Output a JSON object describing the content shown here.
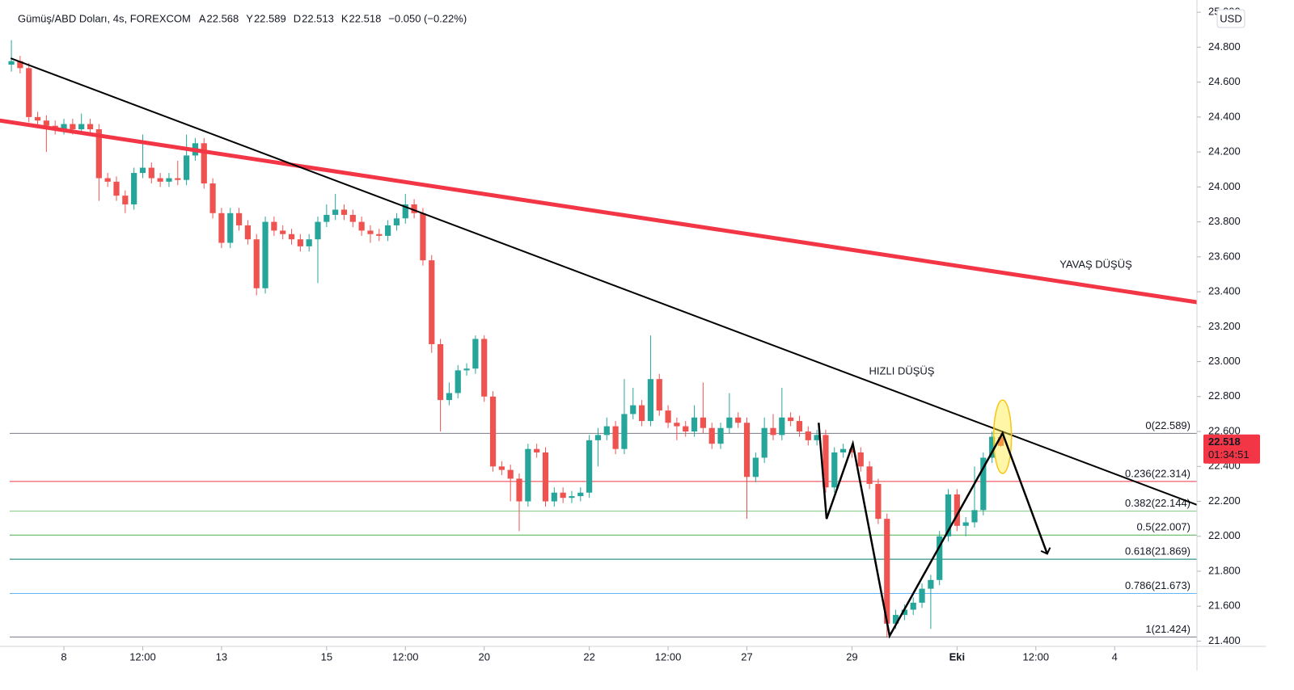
{
  "chart_data": {
    "type": "candlestick",
    "header": {
      "symbol": "Gümüş/ABD Doları, 4s, FOREXCOM",
      "fields": [
        {
          "key": "A",
          "value": "22.568"
        },
        {
          "key": "Y",
          "value": "22.589"
        },
        {
          "key": "D",
          "value": "22.513"
        },
        {
          "key": "K",
          "value": "22.518"
        }
      ],
      "change": "−0.050 (−0.22%)"
    },
    "currency": "USD",
    "up_color": "#26a69a",
    "down_color": "#ef5350",
    "series": [
      {
        "open": [
          24.7,
          24.72,
          24.68,
          24.4,
          24.38,
          24.35,
          24.33,
          24.36,
          24.33,
          24.36,
          24.33,
          24.05,
          24.03,
          23.95,
          23.9,
          24.08,
          24.11,
          24.05,
          24.03,
          24.05,
          24.04,
          24.18,
          24.25,
          24.02,
          23.85,
          23.68,
          23.85,
          23.78,
          23.7,
          23.42,
          23.8,
          23.75,
          23.73,
          23.7,
          23.66,
          23.7,
          23.8,
          23.84,
          23.87,
          23.84,
          23.8,
          23.75,
          23.73,
          23.72,
          23.78,
          23.82,
          23.9,
          23.85,
          23.58,
          23.1,
          22.78,
          22.82,
          22.95,
          22.96,
          23.13,
          22.8,
          22.4,
          22.38,
          22.33,
          22.2,
          22.5,
          22.48,
          22.2,
          22.25,
          22.22,
          22.23,
          22.25,
          22.55,
          22.58,
          22.63,
          22.5,
          22.7,
          22.75,
          22.66,
          22.9,
          22.72,
          22.65,
          22.63,
          22.6,
          22.68,
          22.62,
          22.53,
          22.62,
          22.68,
          22.65,
          22.34,
          22.45,
          22.62,
          22.58,
          22.68,
          22.66,
          22.6,
          22.55,
          22.58,
          22.28,
          22.48,
          22.5,
          22.48,
          22.4,
          22.3,
          22.1,
          21.5,
          21.55,
          21.58,
          21.62,
          21.7,
          21.75,
          22.0,
          22.24,
          22.06,
          22.08,
          22.15,
          22.45,
          22.568
        ],
        "high": [
          24.84,
          24.75,
          24.71,
          24.43,
          24.41,
          24.38,
          24.39,
          24.39,
          24.42,
          24.39,
          24.36,
          24.08,
          24.06,
          23.98,
          24.11,
          24.3,
          24.14,
          24.08,
          24.08,
          24.15,
          24.3,
          24.28,
          24.28,
          24.05,
          23.88,
          23.88,
          23.88,
          23.81,
          23.73,
          23.83,
          23.83,
          23.78,
          23.76,
          23.73,
          23.73,
          23.83,
          23.9,
          23.96,
          23.9,
          23.87,
          23.83,
          23.78,
          23.76,
          23.81,
          23.85,
          23.96,
          23.93,
          23.88,
          23.61,
          23.13,
          22.88,
          22.98,
          22.99,
          23.15,
          23.15,
          22.83,
          22.43,
          22.41,
          22.36,
          22.53,
          22.53,
          22.51,
          22.28,
          22.28,
          22.26,
          22.28,
          22.58,
          22.62,
          22.68,
          22.66,
          22.9,
          22.85,
          22.78,
          23.15,
          22.93,
          22.75,
          22.68,
          22.66,
          22.75,
          22.88,
          22.65,
          22.65,
          22.82,
          22.71,
          22.68,
          22.48,
          22.68,
          22.7,
          22.85,
          22.71,
          22.69,
          22.63,
          22.61,
          22.61,
          22.51,
          22.53,
          22.53,
          22.51,
          22.43,
          22.33,
          22.13,
          21.58,
          21.61,
          21.65,
          21.73,
          21.78,
          22.03,
          22.27,
          22.27,
          22.11,
          22.4,
          22.48,
          22.6,
          22.589
        ],
        "low": [
          24.66,
          24.65,
          24.37,
          24.35,
          24.2,
          24.3,
          24.3,
          24.3,
          24.3,
          24.3,
          23.92,
          24.0,
          23.92,
          23.85,
          23.87,
          24.05,
          24.02,
          24.0,
          24.0,
          24.01,
          24.01,
          24.15,
          23.99,
          23.82,
          23.65,
          23.65,
          23.75,
          23.67,
          23.38,
          23.39,
          23.72,
          23.7,
          23.67,
          23.63,
          23.63,
          23.45,
          23.77,
          23.81,
          23.81,
          23.77,
          23.72,
          23.68,
          23.69,
          23.69,
          23.75,
          23.79,
          23.82,
          23.55,
          23.05,
          22.6,
          22.75,
          22.79,
          22.92,
          22.93,
          22.77,
          22.37,
          22.35,
          22.2,
          22.03,
          22.17,
          22.45,
          22.17,
          22.17,
          22.19,
          22.19,
          22.2,
          22.22,
          22.4,
          22.55,
          22.47,
          22.47,
          22.67,
          22.63,
          22.63,
          22.69,
          22.62,
          22.55,
          22.57,
          22.57,
          22.59,
          22.5,
          22.5,
          22.59,
          22.62,
          22.1,
          22.31,
          22.42,
          22.55,
          22.55,
          22.63,
          22.57,
          22.52,
          22.52,
          22.25,
          22.25,
          22.45,
          22.45,
          22.37,
          22.27,
          22.07,
          21.42,
          21.47,
          21.52,
          21.55,
          21.59,
          21.47,
          21.72,
          21.97,
          22.03,
          22.0,
          22.05,
          22.12,
          22.42,
          22.513
        ],
        "close": [
          24.72,
          24.68,
          24.4,
          24.38,
          24.35,
          24.33,
          24.36,
          24.33,
          24.36,
          24.33,
          24.05,
          24.03,
          23.95,
          23.9,
          24.08,
          24.11,
          24.05,
          24.03,
          24.05,
          24.04,
          24.18,
          24.25,
          24.02,
          23.85,
          23.68,
          23.85,
          23.78,
          23.7,
          23.42,
          23.8,
          23.75,
          23.73,
          23.7,
          23.66,
          23.7,
          23.8,
          23.84,
          23.87,
          23.84,
          23.8,
          23.75,
          23.73,
          23.72,
          23.78,
          23.82,
          23.9,
          23.85,
          23.58,
          23.1,
          22.78,
          22.82,
          22.95,
          22.96,
          23.13,
          22.8,
          22.4,
          22.38,
          22.33,
          22.2,
          22.5,
          22.48,
          22.2,
          22.25,
          22.22,
          22.23,
          22.25,
          22.55,
          22.58,
          22.63,
          22.5,
          22.7,
          22.75,
          22.66,
          22.9,
          22.72,
          22.65,
          22.63,
          22.6,
          22.68,
          22.62,
          22.53,
          22.62,
          22.68,
          22.65,
          22.34,
          22.45,
          22.62,
          22.58,
          22.68,
          22.66,
          22.6,
          22.55,
          22.58,
          22.28,
          22.48,
          22.5,
          22.48,
          22.4,
          22.3,
          22.1,
          21.5,
          21.55,
          21.58,
          21.62,
          21.7,
          21.75,
          22.0,
          22.24,
          22.06,
          22.08,
          22.15,
          22.45,
          22.57,
          22.518
        ]
      }
    ],
    "xlim": [
      -1.3,
      135.4
    ],
    "xticks": [
      {
        "value": 6,
        "label": "8"
      },
      {
        "value": 15,
        "label": "12:00"
      },
      {
        "value": 24,
        "label": "13"
      },
      {
        "value": 36,
        "label": "15"
      },
      {
        "value": 45,
        "label": "12:00"
      },
      {
        "value": 54,
        "label": "20"
      },
      {
        "value": 66,
        "label": "22"
      },
      {
        "value": 75,
        "label": "12:00"
      },
      {
        "value": 84,
        "label": "27"
      },
      {
        "value": 96,
        "label": "29"
      },
      {
        "value": 108,
        "label": "Eki"
      },
      {
        "value": 117,
        "label": "12:00"
      },
      {
        "value": 126,
        "label": "4"
      }
    ],
    "ylim": [
      21.37,
      25.07
    ],
    "yticks": [
      {
        "value": 21.4,
        "label": "21.400"
      },
      {
        "value": 21.6,
        "label": "21.600"
      },
      {
        "value": 21.8,
        "label": "21.800"
      },
      {
        "value": 22.0,
        "label": "22.000"
      },
      {
        "value": 22.2,
        "label": "22.200"
      },
      {
        "value": 22.4,
        "label": "22.400"
      },
      {
        "value": 22.6,
        "label": "22.600"
      },
      {
        "value": 22.8,
        "label": "22.800"
      },
      {
        "value": 23.0,
        "label": "23.000"
      },
      {
        "value": 23.2,
        "label": "23.200"
      },
      {
        "value": 23.4,
        "label": "23.400"
      },
      {
        "value": 23.6,
        "label": "23.600"
      },
      {
        "value": 23.8,
        "label": "23.800"
      },
      {
        "value": 24.0,
        "label": "24.000"
      },
      {
        "value": 24.2,
        "label": "24.200"
      },
      {
        "value": 24.4,
        "label": "24.400"
      },
      {
        "value": 24.6,
        "label": "24.600"
      },
      {
        "value": 24.8,
        "label": "24.800"
      },
      {
        "value": 25.0,
        "label": "25.000"
      }
    ],
    "fib_levels": [
      {
        "value": 22.589,
        "label": "0(22.589)",
        "color": "#787b86"
      },
      {
        "value": 22.314,
        "label": "0.236(22.314)",
        "color": "#f23645"
      },
      {
        "value": 22.144,
        "label": "0.382(22.144)",
        "color": "#81c784"
      },
      {
        "value": 22.007,
        "label": "0.5(22.007)",
        "color": "#4caf50"
      },
      {
        "value": 21.869,
        "label": "0.618(21.869)",
        "color": "#00796b"
      },
      {
        "value": 21.673,
        "label": "0.786(21.673)",
        "color": "#64b5f6"
      },
      {
        "value": 21.424,
        "label": "1(21.424)",
        "color": "#787b86"
      }
    ],
    "price_label": {
      "value": "22.518",
      "countdown": "01:34:51",
      "color": "#f23645"
    },
    "trendlines": [
      {
        "points": [
          [
            -1.3,
            24.38
          ],
          [
            135.4,
            23.34
          ]
        ],
        "color": "#f23645",
        "width": 5
      },
      {
        "points": [
          [
            0,
            24.735
          ],
          [
            135.4,
            22.18
          ]
        ],
        "color": "#000000",
        "width": 2
      }
    ],
    "zigzag": {
      "points": [
        [
          92.2,
          22.65
        ],
        [
          93.1,
          22.1
        ],
        [
          96.1,
          22.53
        ],
        [
          100.3,
          21.43
        ],
        [
          113.2,
          22.59
        ],
        [
          118.3,
          21.9
        ]
      ],
      "color": "#000000"
    },
    "highlight": {
      "points": [
        [
          113.2,
          22.78
        ],
        [
          113.2,
          22.36
        ]
      ]
    },
    "annotations": [
      {
        "text": "YAVAŞ DÜŞÜŞ",
        "color": "#f23645"
      },
      {
        "text": "HIZLI DÜŞÜŞ",
        "color": "#f23645"
      }
    ]
  }
}
